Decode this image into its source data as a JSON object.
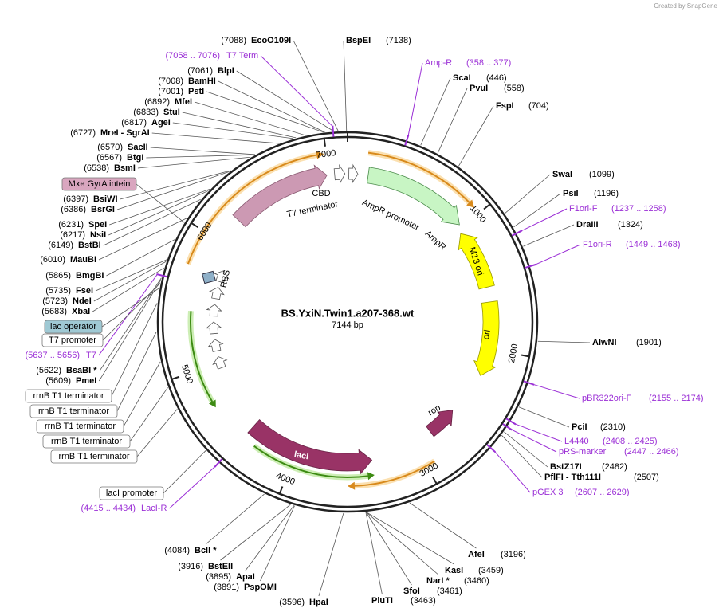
{
  "watermark": "Created by SnapGene",
  "title": "BS.YxiN.Twin1.a207-368.wt",
  "size": "7144 bp",
  "ring_ticks": [
    1000,
    2000,
    3000,
    4000,
    5000,
    6000,
    7000
  ],
  "enzymes": [
    {
      "name": "EcoO109I",
      "site": "(7088)"
    },
    {
      "name": "BspEI",
      "site": "(7138)"
    },
    {
      "name": "BlpI",
      "site": "(7061)"
    },
    {
      "name": "BamHI",
      "site": "(7008)"
    },
    {
      "name": "PstI",
      "site": "(7001)"
    },
    {
      "name": "MfeI",
      "site": "(6892)"
    },
    {
      "name": "StuI",
      "site": "(6833)"
    },
    {
      "name": "AgeI",
      "site": "(6817)"
    },
    {
      "name": "MreI - SgrAI",
      "site": "(6727)"
    },
    {
      "name": "SacII",
      "site": "(6570)"
    },
    {
      "name": "BtgI",
      "site": "(6567)"
    },
    {
      "name": "BsmI",
      "site": "(6538)"
    },
    {
      "name": "BsiWI",
      "site": "(6397)"
    },
    {
      "name": "BsrGI",
      "site": "(6386)"
    },
    {
      "name": "SpeI",
      "site": "(6231)"
    },
    {
      "name": "NsiI",
      "site": "(6217)"
    },
    {
      "name": "BstBI",
      "site": "(6149)"
    },
    {
      "name": "MauBI",
      "site": "(6010)"
    },
    {
      "name": "BmgBI",
      "site": "(5865)"
    },
    {
      "name": "FseI",
      "site": "(5735)"
    },
    {
      "name": "NdeI",
      "site": "(5723)"
    },
    {
      "name": "XbaI",
      "site": "(5683)"
    },
    {
      "name": "BsaBI *",
      "site": "(5622)"
    },
    {
      "name": "PmeI",
      "site": "(5609)"
    },
    {
      "name": "BclI *",
      "site": "(4084)"
    },
    {
      "name": "BstEII",
      "site": "(3916)"
    },
    {
      "name": "ApaI",
      "site": "(3895)"
    },
    {
      "name": "PspOMI",
      "site": "(3891)"
    },
    {
      "name": "HpaI",
      "site": "(3596)"
    },
    {
      "name": "PluTI",
      "site": "(3463)"
    },
    {
      "name": "SfoI",
      "site": "(3461)"
    },
    {
      "name": "NarI *",
      "site": "(3460)"
    },
    {
      "name": "KasI",
      "site": "(3459)"
    },
    {
      "name": "AfeI",
      "site": "(3196)"
    },
    {
      "name": "ScaI",
      "site": "(446)"
    },
    {
      "name": "PvuI",
      "site": "(558)"
    },
    {
      "name": "FspI",
      "site": "(704)"
    },
    {
      "name": "SwaI",
      "site": "(1099)"
    },
    {
      "name": "PsiI",
      "site": "(1196)"
    },
    {
      "name": "DraIII",
      "site": "(1324)"
    },
    {
      "name": "AlwNI",
      "site": "(1901)"
    },
    {
      "name": "PciI",
      "site": "(2310)"
    },
    {
      "name": "BstZ17I",
      "site": "(2482)"
    },
    {
      "name": "PflFI - Tth111I",
      "site": "(2507)"
    }
  ],
  "primers": [
    {
      "name": "T7 Term",
      "site": "(7058 .. 7076)"
    },
    {
      "name": "Amp-R",
      "site": "(358 .. 377)"
    },
    {
      "name": "F1ori-F",
      "site": "(1237 .. 1258)"
    },
    {
      "name": "F1ori-R",
      "site": "(1449 .. 1468)"
    },
    {
      "name": "pBR322ori-F",
      "site": "(2155 .. 2174)"
    },
    {
      "name": "L4440",
      "site": "(2408 .. 2425)"
    },
    {
      "name": "pRS-marker",
      "site": "(2447 .. 2466)"
    },
    {
      "name": "pGEX 3'",
      "site": "(2607 .. 2629)"
    },
    {
      "name": "LacI-R",
      "site": "(4415 .. 4434)"
    },
    {
      "name": "T7",
      "site": "(5637 .. 5656)"
    }
  ],
  "feature_boxes": [
    "Mxe GyrA intein",
    "lac operator",
    "T7 promoter",
    "rrnB T1 terminator",
    "rrnB T1 terminator",
    "rrnB T1 terminator",
    "rrnB T1 terminator",
    "rrnB T1 terminator",
    "lacI promoter"
  ],
  "features": [
    "CBD",
    "T7 terminator",
    "AmpR promoter",
    "AmpR",
    "M13 ori",
    "ori",
    "rop",
    "lacI",
    "RBS"
  ]
}
